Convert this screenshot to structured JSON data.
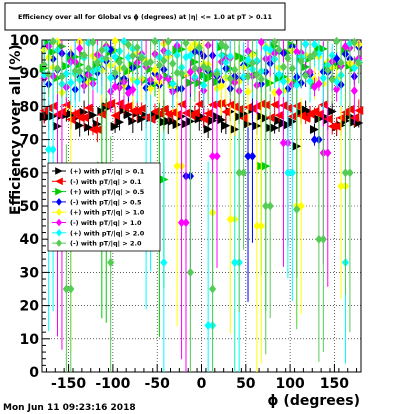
{
  "chart_data": {
    "type": "scatter",
    "title": "Efficiency over all for Global vs ϕ (degrees) at |η| <= 1.0 at pT > 0.11",
    "xlabel": "ϕ (degrees)",
    "ylabel": "Efficiency over all (%)",
    "xlim": [
      -180,
      180
    ],
    "ylim": [
      0,
      100
    ],
    "x_ticks": [
      -150,
      -100,
      -50,
      0,
      50,
      100,
      150
    ],
    "y_ticks": [
      0,
      10,
      20,
      30,
      40,
      50,
      60,
      70,
      80,
      90,
      100
    ],
    "grid": true,
    "legend_position": "left-middle",
    "timestamp": "Mon Jun 11 09:23:16 2018",
    "series": [
      {
        "name": "(+) with pT/|q| > 0.1",
        "color": "#000000",
        "marker": "triangle-right",
        "band": [
          73,
          79
        ],
        "dips": [
          [
            -105,
            80
          ],
          [
            107,
            68
          ]
        ]
      },
      {
        "name": "(-) with pT/|q| > 0.1",
        "color": "#ff0000",
        "marker": "triangle-left",
        "band": [
          76,
          81
        ],
        "dips": [
          [
            -120,
            73
          ],
          [
            150,
            74
          ]
        ]
      },
      {
        "name": "(+) with pT/|q| > 0.5",
        "color": "#00cc00",
        "marker": "triangle-right",
        "band": [
          86,
          99
        ],
        "dips": [
          [
            -110,
            62
          ],
          [
            -45,
            58
          ],
          [
            70,
            62
          ]
        ]
      },
      {
        "name": "(-) with pT/|q| > 0.5",
        "color": "#0000ff",
        "marker": "diamond",
        "band": [
          85,
          98
        ],
        "dips": [
          [
            -15,
            59
          ],
          [
            55,
            65
          ],
          [
            130,
            70
          ]
        ]
      },
      {
        "name": "(+) with pT/|q| > 1.0",
        "color": "#ffff00",
        "marker": "diamond",
        "band": [
          84,
          100
        ],
        "dips": [
          [
            -148,
            52
          ],
          [
            -25,
            62
          ],
          [
            12,
            48
          ],
          [
            35,
            46
          ],
          [
            65,
            44
          ],
          [
            110,
            50
          ],
          [
            160,
            56
          ]
        ]
      },
      {
        "name": "(-) with pT/|q| > 1.0",
        "color": "#ff00ff",
        "marker": "diamond",
        "band": [
          84,
          100
        ],
        "dips": [
          [
            -160,
            57
          ],
          [
            -20,
            45
          ],
          [
            15,
            65
          ],
          [
            95,
            69
          ],
          [
            140,
            66
          ]
        ]
      },
      {
        "name": "(+) with pT/|q| > 2.0",
        "color": "#00ffff",
        "marker": "diamond",
        "band": [
          86,
          100
        ],
        "dips": [
          [
            -170,
            67
          ],
          [
            -60,
            57
          ],
          [
            -42,
            33
          ],
          [
            10,
            14
          ],
          [
            40,
            33
          ],
          [
            100,
            60
          ],
          [
            162,
            33
          ]
        ]
      },
      {
        "name": "(-) with pT/|q| > 2.0",
        "color": "#55cc55",
        "marker": "diamond",
        "band": [
          88,
          100
        ],
        "dips": [
          [
            -150,
            25
          ],
          [
            -103,
            33
          ],
          [
            -12,
            30
          ],
          [
            14,
            25
          ],
          [
            45,
            60
          ],
          [
            75,
            50
          ],
          [
            108,
            49
          ],
          [
            135,
            40
          ],
          [
            165,
            60
          ]
        ]
      }
    ]
  }
}
